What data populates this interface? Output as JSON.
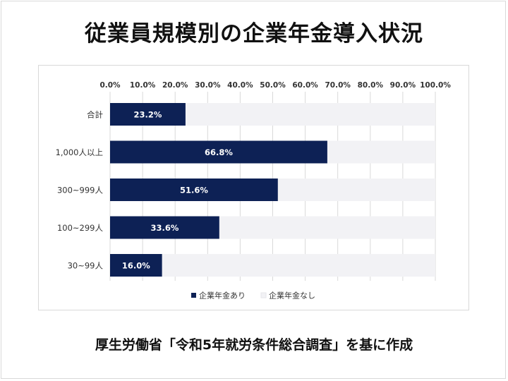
{
  "title": "従業員規模別の企業年金導入状況",
  "source_note": "厚生労働省「令和5年就労条件総合調査」を基に作成",
  "colors": {
    "series_yes": "#0d2155",
    "series_no": "#f2f2f5",
    "grid": "#d9d9d9"
  },
  "chart_data": {
    "type": "bar",
    "orientation": "horizontal",
    "stacked": true,
    "title": "",
    "xlabel": "",
    "ylabel": "",
    "xlim": [
      0,
      100
    ],
    "x_ticks": [
      0,
      10,
      20,
      30,
      40,
      50,
      60,
      70,
      80,
      90,
      100
    ],
    "x_tick_labels": [
      "0.0%",
      "10.0%",
      "20.0%",
      "30.0%",
      "40.0%",
      "50.0%",
      "60.0%",
      "70.0%",
      "80.0%",
      "90.0%",
      "100.0%"
    ],
    "grid": true,
    "legend_position": "bottom",
    "categories": [
      "合計",
      "1,000人以上",
      "300~999人",
      "100~299人",
      "30~99人"
    ],
    "series": [
      {
        "name": "企業年金あり",
        "values": [
          23.2,
          66.8,
          51.6,
          33.6,
          16.0
        ],
        "labels": [
          "23.2%",
          "66.8%",
          "51.6%",
          "33.6%",
          "16.0%"
        ],
        "color": "#0d2155"
      },
      {
        "name": "企業年金なし",
        "values": [
          76.8,
          33.2,
          48.4,
          66.4,
          84.0
        ],
        "color": "#f2f2f5"
      }
    ]
  }
}
